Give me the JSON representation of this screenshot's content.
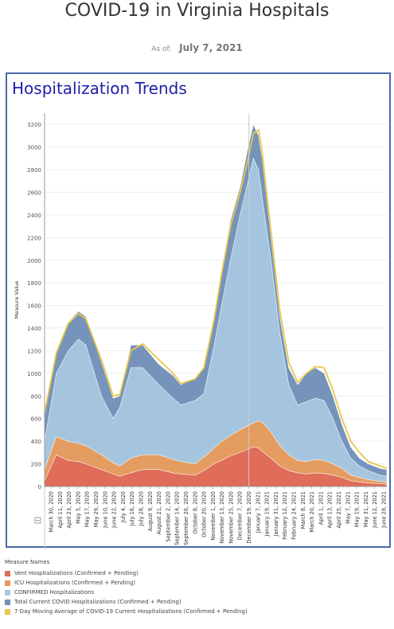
{
  "header": {
    "title": "COVID-19 in Virginia Hospitals",
    "as_of_label": "As of:",
    "as_of_date": "July 7, 2021"
  },
  "card": {
    "title": "Hospitalization Trends"
  },
  "legend": {
    "title": "Measure Names",
    "items": [
      {
        "label": "Vent Hospitalizations (Confirmed + Pending)",
        "color": "#e06a5a"
      },
      {
        "label": "ICU Hospitalizations (Confirmed + Pending)",
        "color": "#e89a5a"
      },
      {
        "label": "CONFIRMED Hospitalizations",
        "color": "#a8c8e0"
      },
      {
        "label": "Total Current COVID Hospitalizations (Confirmed + Pending)",
        "color": "#6f8fb8"
      },
      {
        "label": "7 Day Moving Average of COVID-19 Current Hospitalizations (Confirmed + Pending)",
        "color": "#e8c84a"
      }
    ]
  },
  "chart_data": {
    "type": "area",
    "ylabel": "Measure Value",
    "ylim": [
      0,
      3300
    ],
    "yticks": [
      0,
      200,
      400,
      600,
      800,
      1000,
      1200,
      1400,
      1600,
      1800,
      2000,
      2200,
      2400,
      2600,
      2800,
      3000,
      3200
    ],
    "x_start": "March 30, 2020",
    "x_end": "July 7, 2021",
    "xtick_labels": [
      "March 30, 2020",
      "April 11, 2020",
      "April 23, 2020",
      "May 5, 2020",
      "May 17, 2020",
      "May 29, 2020",
      "June 10, 2020",
      "June 22, 2020",
      "July 4, 2020",
      "July 16, 2020",
      "July 28, 2020",
      "August 9, 2020",
      "August 21, 2020",
      "September 2, 2020",
      "September 14, 2020",
      "September 26, 2020",
      "October 8, 2020",
      "October 20, 2020",
      "November 1, 2020",
      "November 13, 2020",
      "November 25, 2020",
      "December 7, 2020",
      "December 19, 2020",
      "January 7, 2021",
      "January 19, 2021",
      "January 31, 2021",
      "February 12, 2021",
      "February 24, 2021",
      "March 8, 2021",
      "March 20, 2021",
      "April 1, 2021",
      "April 13, 2021",
      "April 25, 2021",
      "May 7, 2021",
      "May 19, 2021",
      "May 31, 2021",
      "June 12, 2021",
      "June 28, 2021"
    ],
    "x_dates": [
      "2020-03-30",
      "2020-04-15",
      "2020-05-01",
      "2020-05-15",
      "2020-05-25",
      "2020-06-15",
      "2020-07-01",
      "2020-07-10",
      "2020-07-25",
      "2020-08-10",
      "2020-09-01",
      "2020-09-20",
      "2020-10-01",
      "2020-10-20",
      "2020-11-01",
      "2020-11-15",
      "2020-11-25",
      "2020-12-07",
      "2020-12-20",
      "2020-12-31",
      "2021-01-07",
      "2021-01-14",
      "2021-01-19",
      "2021-01-31",
      "2021-02-12",
      "2021-02-24",
      "2021-03-08",
      "2021-03-20",
      "2021-04-01",
      "2021-04-13",
      "2021-04-25",
      "2021-05-07",
      "2021-05-19",
      "2021-05-31",
      "2021-06-12",
      "2021-06-28",
      "2021-07-07"
    ],
    "series": [
      {
        "name": "Vent Hospitalizations (Confirmed + Pending)",
        "values": [
          50,
          280,
          230,
          220,
          200,
          150,
          110,
          90,
          120,
          150,
          150,
          120,
          110,
          100,
          140,
          200,
          230,
          270,
          300,
          330,
          350,
          340,
          310,
          250,
          180,
          140,
          120,
          110,
          120,
          115,
          100,
          80,
          50,
          40,
          30,
          25,
          20
        ]
      },
      {
        "name": "ICU Hospitalizations (Confirmed + Pending)",
        "values": [
          150,
          440,
          400,
          380,
          360,
          280,
          210,
          180,
          250,
          280,
          280,
          240,
          220,
          200,
          260,
          340,
          400,
          450,
          500,
          540,
          560,
          580,
          570,
          480,
          360,
          280,
          230,
          220,
          240,
          230,
          200,
          160,
          100,
          80,
          60,
          45,
          40
        ]
      },
      {
        "name": "CONFIRMED Hospitalizations",
        "values": [
          400,
          1000,
          1200,
          1300,
          1250,
          800,
          600,
          700,
          1050,
          1050,
          900,
          780,
          720,
          760,
          820,
          1250,
          1600,
          2000,
          2400,
          2700,
          2900,
          2800,
          2550,
          2000,
          1350,
          900,
          720,
          750,
          780,
          760,
          600,
          400,
          250,
          180,
          140,
          100,
          90
        ]
      },
      {
        "name": "Total Current COVID Hospitalizations (Confirmed + Pending)",
        "values": [
          650,
          1200,
          1450,
          1550,
          1500,
          1100,
          780,
          800,
          1250,
          1250,
          1080,
          980,
          900,
          960,
          1050,
          1500,
          1900,
          2350,
          2650,
          3000,
          3200,
          3100,
          2900,
          2200,
          1500,
          1050,
          900,
          1000,
          1050,
          1000,
          800,
          550,
          350,
          250,
          200,
          160,
          150
        ]
      },
      {
        "name": "7 Day Moving Average of COVID-19 Current Hospitalizations (Confirmed + Pending)",
        "values": [
          650,
          1180,
          1440,
          1530,
          1480,
          1120,
          800,
          810,
          1200,
          1260,
          1120,
          1000,
          910,
          950,
          1050,
          1480,
          1880,
          2300,
          2600,
          2900,
          3120,
          3150,
          2950,
          2250,
          1550,
          1100,
          920,
          1000,
          1060,
          1050,
          850,
          600,
          400,
          300,
          220,
          180,
          160
        ]
      }
    ],
    "colors": [
      "#e06a5a",
      "#e89a5a",
      "#a8c8e0",
      "#6f8fb8",
      "#e8c84a"
    ],
    "grid": true,
    "legend_placement": "bottom-left"
  }
}
